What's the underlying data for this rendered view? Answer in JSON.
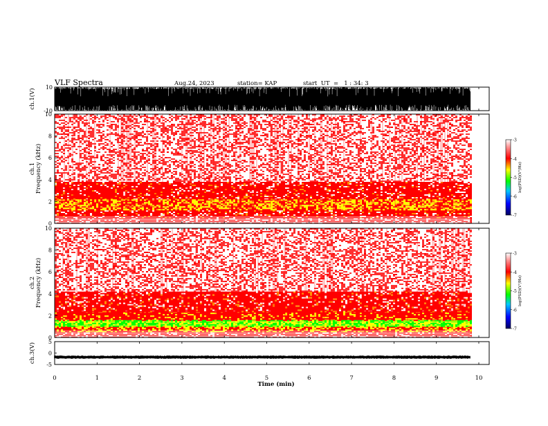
{
  "header": {
    "title": "VLF Spectra",
    "date": "Aug.24, 2023",
    "station": "station= KAP",
    "start": "start  UT  =   1 : 34: 3"
  },
  "chart_data": [
    {
      "type": "line",
      "name": "ch1-waveform",
      "ylabel": "ch.1(V)",
      "ylim": [
        -10,
        10
      ],
      "y_ticks": [
        "10",
        "-10"
      ],
      "xlim": [
        0,
        10
      ],
      "note_values": "saturated broadband signal spanning most of -10..10 V across 0-9.8 min"
    },
    {
      "type": "heatmap",
      "name": "ch1-spectrogram",
      "ylabel": "ch.1\nFrequency  (kHz)",
      "ylim": [
        0,
        10
      ],
      "y_ticks": [
        "0",
        "2",
        "4",
        "6",
        "8",
        "10"
      ],
      "xlim": [
        0,
        10
      ],
      "data_end_min": 9.8,
      "bands": [
        {
          "f_low": 0.0,
          "f_high": 0.5,
          "level": "red-white-striped"
        },
        {
          "f_low": 0.5,
          "f_high": 1.2,
          "level": "red"
        },
        {
          "f_low": 1.2,
          "f_high": 2.2,
          "level": "yellow-red"
        },
        {
          "f_low": 2.2,
          "f_high": 3.8,
          "level": "red"
        },
        {
          "f_low": 3.8,
          "f_high": 10.0,
          "level": "sparse-red"
        }
      ],
      "colorbar": {
        "label": "log(PSD)(V²/Hz)",
        "ticks": [
          "-3",
          "-4",
          "-5",
          "-6",
          "-7"
        ],
        "range": [
          -7,
          -3
        ]
      }
    },
    {
      "type": "heatmap",
      "name": "ch2-spectrogram",
      "ylabel": "ch.2\nFrequency  (kHz)",
      "ylim": [
        0,
        10
      ],
      "y_ticks": [
        "0",
        "2",
        "4",
        "6",
        "8",
        "10"
      ],
      "xlim": [
        0,
        10
      ],
      "data_end_min": 9.8,
      "bands": [
        {
          "f_low": 0.0,
          "f_high": 0.6,
          "level": "red-white-striped"
        },
        {
          "f_low": 0.6,
          "f_high": 1.0,
          "level": "yellow-red"
        },
        {
          "f_low": 1.0,
          "f_high": 1.6,
          "level": "green-yellow"
        },
        {
          "f_low": 1.6,
          "f_high": 2.4,
          "level": "red-yellow"
        },
        {
          "f_low": 2.4,
          "f_high": 4.2,
          "level": "red"
        },
        {
          "f_low": 4.2,
          "f_high": 10.0,
          "level": "sparse-red"
        }
      ],
      "colorbar": {
        "label": "log(PSD)(V²/Hz)",
        "ticks": [
          "-3",
          "-4",
          "-5",
          "-6",
          "-7"
        ],
        "range": [
          -7,
          -3
        ]
      }
    },
    {
      "type": "line",
      "name": "ch3-waveform",
      "ylabel": "ch.3(V)",
      "ylim": [
        -5,
        5
      ],
      "y_ticks": [
        "5",
        "0",
        "-5"
      ],
      "xlim": [
        0,
        10
      ],
      "band_center_v": -1.8,
      "band_halfwidth_v": 0.6
    }
  ],
  "x_axis": {
    "label": "Time  (min)",
    "ticks": [
      "0",
      "1",
      "2",
      "3",
      "4",
      "5",
      "6",
      "7",
      "8",
      "9",
      "10"
    ]
  },
  "colors": {
    "red": "#ff0000",
    "yellow": "#ffff00",
    "green": "#00ff00",
    "colormap": [
      "#000080",
      "#0000ff",
      "#00ffff",
      "#00ff00",
      "#ffff00",
      "#ff0000",
      "#ffd0d0",
      "#ffffff"
    ]
  }
}
